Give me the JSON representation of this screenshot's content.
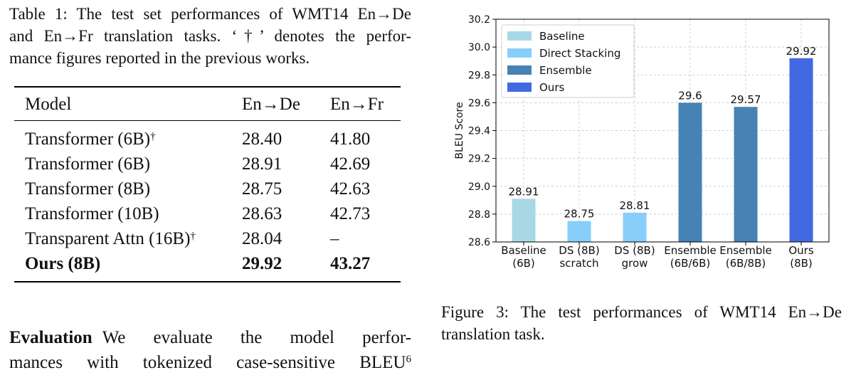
{
  "table_caption": {
    "lines": [
      "Table 1: The test set performances of WMT14 En→De",
      "and En→Fr translation tasks. ‘†’ denotes the perfor-",
      "mance figures reported in the previous works."
    ]
  },
  "table": {
    "headers": [
      "Model",
      "En→De",
      "En→Fr"
    ],
    "rows": [
      {
        "model": "Transformer (6B)",
        "mark": "†",
        "de": "28.40",
        "fr": "41.80"
      },
      {
        "model": "Transformer (6B)",
        "mark": "",
        "de": "28.91",
        "fr": "42.69"
      },
      {
        "model": "Transformer (8B)",
        "mark": "",
        "de": "28.75",
        "fr": "42.63"
      },
      {
        "model": "Transformer (10B)",
        "mark": "",
        "de": "28.63",
        "fr": "42.73"
      },
      {
        "model": "Transparent Attn (16B)",
        "mark": "†",
        "de": "28.04",
        "fr": "–"
      },
      {
        "model": "Ours (8B)",
        "mark": "",
        "de": "29.92",
        "fr": "43.27"
      }
    ]
  },
  "paragraph": {
    "heading": "Evaluation",
    "line1": "We evaluate the model perfor-",
    "line2": "mances with tokenized case-sensitive BLEU",
    "footnote": "6"
  },
  "figure_caption": {
    "lines": [
      "Figure 3: The test performances of WMT14 En→De",
      "translation task."
    ]
  },
  "chart_data": {
    "type": "bar",
    "ylabel": "BLEU Score",
    "xlabel": "",
    "ylim": [
      28.6,
      30.2
    ],
    "yticks": [
      "28.6",
      "28.8",
      "29.0",
      "29.2",
      "29.4",
      "29.6",
      "29.8",
      "30.0",
      "30.2"
    ],
    "grid": true,
    "legend_position": "top-left",
    "categories": [
      [
        "Baseline",
        "(6B)"
      ],
      [
        "DS (8B)",
        "scratch"
      ],
      [
        "DS (8B)",
        "grow"
      ],
      [
        "Ensemble",
        "(6B/6B)"
      ],
      [
        "Ensemble",
        "(6B/8B)"
      ],
      [
        "Ours",
        "(8B)"
      ]
    ],
    "values": [
      28.91,
      28.75,
      28.81,
      29.6,
      29.57,
      29.92
    ],
    "value_labels": [
      "28.91",
      "28.75",
      "28.81",
      "29.6",
      "29.57",
      "29.92"
    ],
    "bar_series": [
      "Baseline",
      "Direct Stacking",
      "Direct Stacking",
      "Ensemble",
      "Ensemble",
      "Ours"
    ],
    "legend": [
      {
        "name": "Baseline",
        "color": "#a8d8e5"
      },
      {
        "name": "Direct Stacking",
        "color": "#87cefa"
      },
      {
        "name": "Ensemble",
        "color": "#4682b4"
      },
      {
        "name": "Ours",
        "color": "#4169e1"
      }
    ]
  }
}
